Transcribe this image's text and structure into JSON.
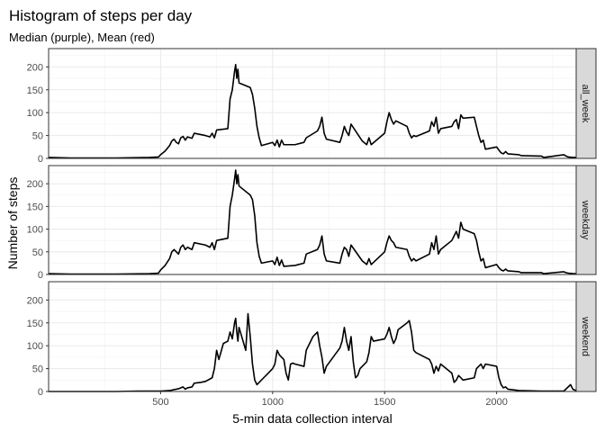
{
  "chart_data": {
    "type": "line",
    "title": "Histogram of steps per day",
    "subtitle": "Median (purple), Mean (red)",
    "xlabel": "5-min data collection interval",
    "ylabel": "Number of steps",
    "xlim": [
      0,
      2355
    ],
    "ylim": [
      0,
      240
    ],
    "x_ticks": [
      500,
      1000,
      1500,
      2000
    ],
    "y_ticks": [
      0,
      50,
      100,
      150,
      200
    ],
    "grid": true,
    "line_color": "#000000",
    "strip_fill": "#d9d9d9",
    "panels": [
      {
        "name": "all_week",
        "points": [
          [
            0,
            2
          ],
          [
            100,
            1
          ],
          [
            300,
            1
          ],
          [
            450,
            2
          ],
          [
            490,
            3
          ],
          [
            500,
            8
          ],
          [
            520,
            16
          ],
          [
            540,
            28
          ],
          [
            550,
            38
          ],
          [
            560,
            42
          ],
          [
            570,
            35
          ],
          [
            580,
            32
          ],
          [
            590,
            45
          ],
          [
            600,
            48
          ],
          [
            610,
            40
          ],
          [
            620,
            47
          ],
          [
            640,
            44
          ],
          [
            650,
            55
          ],
          [
            700,
            50
          ],
          [
            720,
            47
          ],
          [
            730,
            55
          ],
          [
            740,
            45
          ],
          [
            750,
            62
          ],
          [
            800,
            65
          ],
          [
            810,
            130
          ],
          [
            820,
            150
          ],
          [
            830,
            190
          ],
          [
            835,
            205
          ],
          [
            840,
            175
          ],
          [
            845,
            195
          ],
          [
            850,
            165
          ],
          [
            900,
            155
          ],
          [
            910,
            140
          ],
          [
            920,
            110
          ],
          [
            930,
            70
          ],
          [
            940,
            45
          ],
          [
            950,
            28
          ],
          [
            1000,
            35
          ],
          [
            1010,
            28
          ],
          [
            1020,
            40
          ],
          [
            1030,
            25
          ],
          [
            1040,
            40
          ],
          [
            1050,
            30
          ],
          [
            1100,
            30
          ],
          [
            1140,
            35
          ],
          [
            1150,
            45
          ],
          [
            1200,
            60
          ],
          [
            1210,
            70
          ],
          [
            1220,
            90
          ],
          [
            1230,
            55
          ],
          [
            1240,
            42
          ],
          [
            1300,
            35
          ],
          [
            1310,
            50
          ],
          [
            1320,
            70
          ],
          [
            1330,
            58
          ],
          [
            1340,
            50
          ],
          [
            1350,
            75
          ],
          [
            1400,
            38
          ],
          [
            1420,
            30
          ],
          [
            1430,
            45
          ],
          [
            1440,
            30
          ],
          [
            1500,
            55
          ],
          [
            1510,
            80
          ],
          [
            1520,
            100
          ],
          [
            1530,
            85
          ],
          [
            1540,
            75
          ],
          [
            1550,
            82
          ],
          [
            1600,
            70
          ],
          [
            1610,
            55
          ],
          [
            1620,
            45
          ],
          [
            1630,
            50
          ],
          [
            1640,
            48
          ],
          [
            1700,
            60
          ],
          [
            1710,
            80
          ],
          [
            1720,
            70
          ],
          [
            1730,
            90
          ],
          [
            1740,
            55
          ],
          [
            1750,
            65
          ],
          [
            1800,
            70
          ],
          [
            1810,
            80
          ],
          [
            1820,
            85
          ],
          [
            1830,
            65
          ],
          [
            1840,
            95
          ],
          [
            1850,
            88
          ],
          [
            1900,
            90
          ],
          [
            1910,
            70
          ],
          [
            1920,
            50
          ],
          [
            1930,
            35
          ],
          [
            1940,
            40
          ],
          [
            1950,
            20
          ],
          [
            2000,
            25
          ],
          [
            2010,
            18
          ],
          [
            2020,
            12
          ],
          [
            2030,
            10
          ],
          [
            2040,
            15
          ],
          [
            2050,
            10
          ],
          [
            2100,
            8
          ],
          [
            2110,
            6
          ],
          [
            2200,
            5
          ],
          [
            2210,
            2
          ],
          [
            2300,
            8
          ],
          [
            2310,
            5
          ],
          [
            2320,
            3
          ],
          [
            2340,
            2
          ],
          [
            2355,
            2
          ]
        ]
      },
      {
        "name": "weekday",
        "points": [
          [
            0,
            2
          ],
          [
            100,
            1
          ],
          [
            300,
            1
          ],
          [
            450,
            2
          ],
          [
            490,
            3
          ],
          [
            500,
            10
          ],
          [
            520,
            20
          ],
          [
            540,
            35
          ],
          [
            550,
            50
          ],
          [
            560,
            55
          ],
          [
            570,
            50
          ],
          [
            580,
            45
          ],
          [
            590,
            60
          ],
          [
            600,
            65
          ],
          [
            610,
            55
          ],
          [
            620,
            60
          ],
          [
            640,
            55
          ],
          [
            650,
            70
          ],
          [
            700,
            65
          ],
          [
            720,
            60
          ],
          [
            730,
            70
          ],
          [
            740,
            55
          ],
          [
            750,
            75
          ],
          [
            800,
            80
          ],
          [
            810,
            150
          ],
          [
            820,
            175
          ],
          [
            830,
            210
          ],
          [
            835,
            230
          ],
          [
            840,
            200
          ],
          [
            845,
            220
          ],
          [
            850,
            195
          ],
          [
            900,
            175
          ],
          [
            910,
            165
          ],
          [
            920,
            130
          ],
          [
            930,
            70
          ],
          [
            940,
            40
          ],
          [
            950,
            25
          ],
          [
            1000,
            30
          ],
          [
            1010,
            22
          ],
          [
            1020,
            38
          ],
          [
            1030,
            20
          ],
          [
            1040,
            32
          ],
          [
            1050,
            18
          ],
          [
            1100,
            20
          ],
          [
            1140,
            25
          ],
          [
            1150,
            45
          ],
          [
            1200,
            55
          ],
          [
            1210,
            65
          ],
          [
            1220,
            85
          ],
          [
            1230,
            45
          ],
          [
            1240,
            30
          ],
          [
            1300,
            25
          ],
          [
            1310,
            45
          ],
          [
            1320,
            60
          ],
          [
            1330,
            55
          ],
          [
            1340,
            40
          ],
          [
            1350,
            65
          ],
          [
            1400,
            30
          ],
          [
            1420,
            22
          ],
          [
            1430,
            35
          ],
          [
            1440,
            22
          ],
          [
            1500,
            50
          ],
          [
            1510,
            70
          ],
          [
            1520,
            85
          ],
          [
            1530,
            75
          ],
          [
            1540,
            70
          ],
          [
            1550,
            60
          ],
          [
            1600,
            55
          ],
          [
            1610,
            40
          ],
          [
            1620,
            30
          ],
          [
            1630,
            35
          ],
          [
            1640,
            30
          ],
          [
            1700,
            45
          ],
          [
            1710,
            70
          ],
          [
            1720,
            55
          ],
          [
            1730,
            85
          ],
          [
            1740,
            45
          ],
          [
            1750,
            55
          ],
          [
            1800,
            75
          ],
          [
            1810,
            85
          ],
          [
            1820,
            95
          ],
          [
            1830,
            80
          ],
          [
            1840,
            115
          ],
          [
            1850,
            100
          ],
          [
            1900,
            90
          ],
          [
            1910,
            75
          ],
          [
            1920,
            50
          ],
          [
            1930,
            30
          ],
          [
            1940,
            35
          ],
          [
            1950,
            15
          ],
          [
            2000,
            22
          ],
          [
            2010,
            15
          ],
          [
            2020,
            10
          ],
          [
            2030,
            8
          ],
          [
            2040,
            12
          ],
          [
            2050,
            8
          ],
          [
            2100,
            6
          ],
          [
            2110,
            4
          ],
          [
            2200,
            4
          ],
          [
            2210,
            2
          ],
          [
            2300,
            6
          ],
          [
            2310,
            4
          ],
          [
            2320,
            3
          ],
          [
            2340,
            2
          ],
          [
            2355,
            2
          ]
        ]
      },
      {
        "name": "weekend",
        "points": [
          [
            0,
            0
          ],
          [
            300,
            0
          ],
          [
            400,
            1
          ],
          [
            500,
            1
          ],
          [
            540,
            2
          ],
          [
            560,
            4
          ],
          [
            580,
            6
          ],
          [
            600,
            10
          ],
          [
            610,
            5
          ],
          [
            620,
            8
          ],
          [
            640,
            10
          ],
          [
            650,
            18
          ],
          [
            680,
            20
          ],
          [
            700,
            22
          ],
          [
            730,
            30
          ],
          [
            740,
            50
          ],
          [
            750,
            90
          ],
          [
            760,
            70
          ],
          [
            780,
            105
          ],
          [
            800,
            110
          ],
          [
            810,
            130
          ],
          [
            820,
            115
          ],
          [
            830,
            150
          ],
          [
            835,
            160
          ],
          [
            840,
            130
          ],
          [
            845,
            110
          ],
          [
            850,
            140
          ],
          [
            880,
            90
          ],
          [
            885,
            130
          ],
          [
            890,
            170
          ],
          [
            900,
            120
          ],
          [
            910,
            60
          ],
          [
            920,
            25
          ],
          [
            930,
            15
          ],
          [
            960,
            30
          ],
          [
            980,
            40
          ],
          [
            1000,
            50
          ],
          [
            1010,
            60
          ],
          [
            1020,
            90
          ],
          [
            1030,
            80
          ],
          [
            1040,
            75
          ],
          [
            1050,
            70
          ],
          [
            1060,
            40
          ],
          [
            1070,
            25
          ],
          [
            1080,
            60
          ],
          [
            1090,
            62
          ],
          [
            1100,
            60
          ],
          [
            1140,
            55
          ],
          [
            1150,
            90
          ],
          [
            1180,
            120
          ],
          [
            1200,
            130
          ],
          [
            1210,
            100
          ],
          [
            1220,
            75
          ],
          [
            1230,
            40
          ],
          [
            1240,
            55
          ],
          [
            1300,
            95
          ],
          [
            1310,
            110
          ],
          [
            1320,
            140
          ],
          [
            1330,
            110
          ],
          [
            1340,
            90
          ],
          [
            1350,
            120
          ],
          [
            1360,
            65
          ],
          [
            1370,
            30
          ],
          [
            1380,
            35
          ],
          [
            1390,
            50
          ],
          [
            1400,
            55
          ],
          [
            1420,
            65
          ],
          [
            1430,
            85
          ],
          [
            1440,
            120
          ],
          [
            1450,
            110
          ],
          [
            1500,
            115
          ],
          [
            1510,
            125
          ],
          [
            1520,
            140
          ],
          [
            1530,
            120
          ],
          [
            1540,
            105
          ],
          [
            1550,
            115
          ],
          [
            1560,
            135
          ],
          [
            1600,
            150
          ],
          [
            1610,
            155
          ],
          [
            1620,
            130
          ],
          [
            1630,
            90
          ],
          [
            1640,
            85
          ],
          [
            1700,
            70
          ],
          [
            1710,
            60
          ],
          [
            1720,
            40
          ],
          [
            1730,
            55
          ],
          [
            1740,
            45
          ],
          [
            1750,
            60
          ],
          [
            1800,
            40
          ],
          [
            1810,
            20
          ],
          [
            1820,
            25
          ],
          [
            1830,
            35
          ],
          [
            1840,
            30
          ],
          [
            1850,
            25
          ],
          [
            1900,
            30
          ],
          [
            1910,
            50
          ],
          [
            1920,
            55
          ],
          [
            1930,
            60
          ],
          [
            1940,
            50
          ],
          [
            1950,
            60
          ],
          [
            2000,
            55
          ],
          [
            2010,
            30
          ],
          [
            2020,
            15
          ],
          [
            2030,
            8
          ],
          [
            2040,
            10
          ],
          [
            2050,
            5
          ],
          [
            2100,
            2
          ],
          [
            2200,
            1
          ],
          [
            2300,
            1
          ],
          [
            2330,
            15
          ],
          [
            2340,
            5
          ],
          [
            2355,
            2
          ]
        ]
      }
    ]
  }
}
